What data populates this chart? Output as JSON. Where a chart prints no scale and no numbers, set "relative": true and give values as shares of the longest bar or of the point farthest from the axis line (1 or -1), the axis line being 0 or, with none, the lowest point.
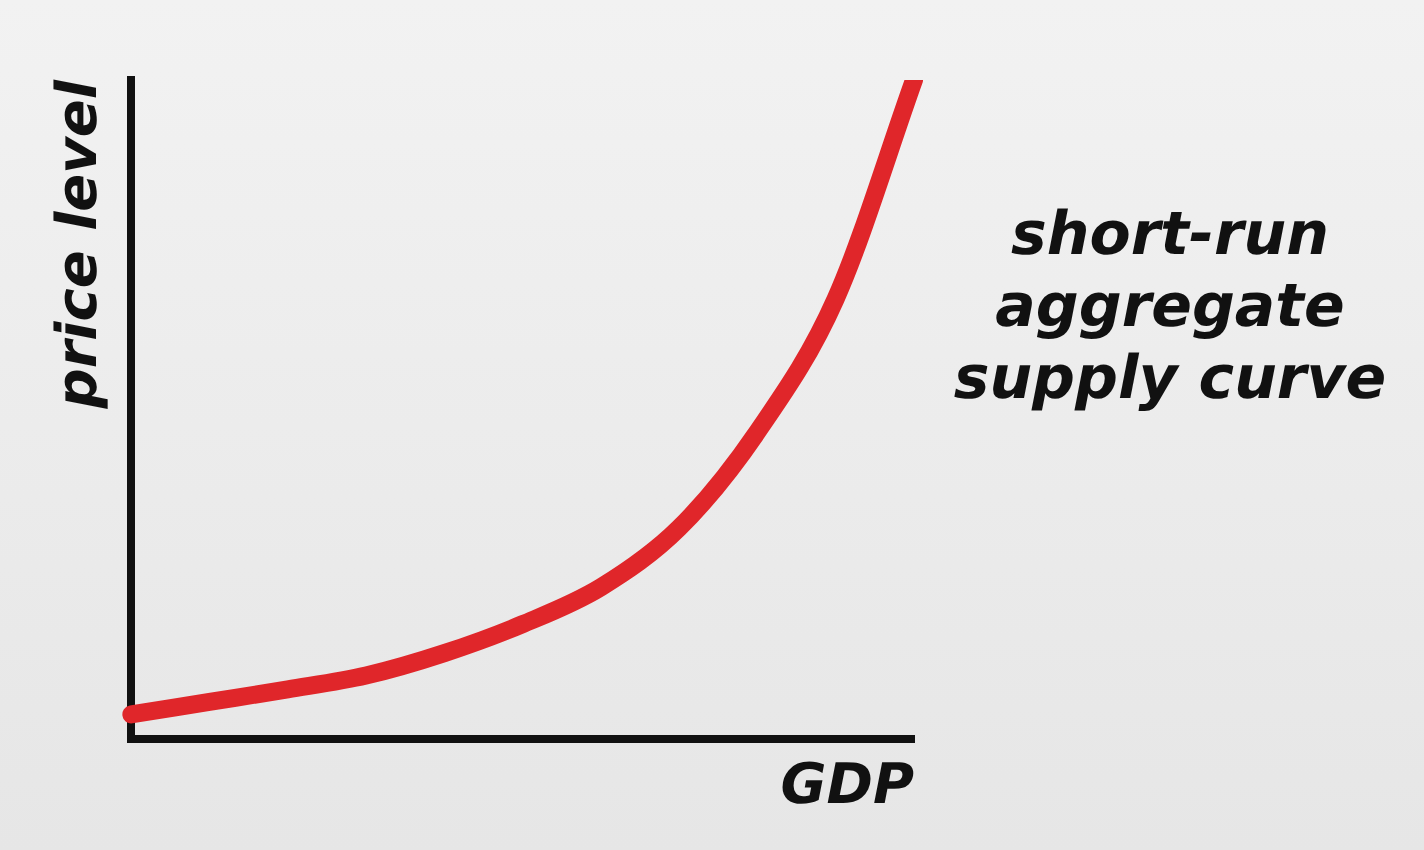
{
  "chart_data": {
    "type": "line",
    "relative": true,
    "xlabel": "GDP",
    "ylabel": "price level",
    "annotations": [
      "short-run aggregate supply curve"
    ],
    "categories": [
      null,
      null,
      null,
      null,
      null,
      null,
      null,
      null,
      null,
      null,
      null
    ],
    "marker": "none",
    "series": [
      {
        "color": "#e0262a",
        "values": [
          0.037,
          0.056,
          0.075,
          0.096,
          0.13,
          0.174,
          0.23,
          0.32,
          0.466,
          0.668,
          1.0
        ]
      }
    ]
  }
}
